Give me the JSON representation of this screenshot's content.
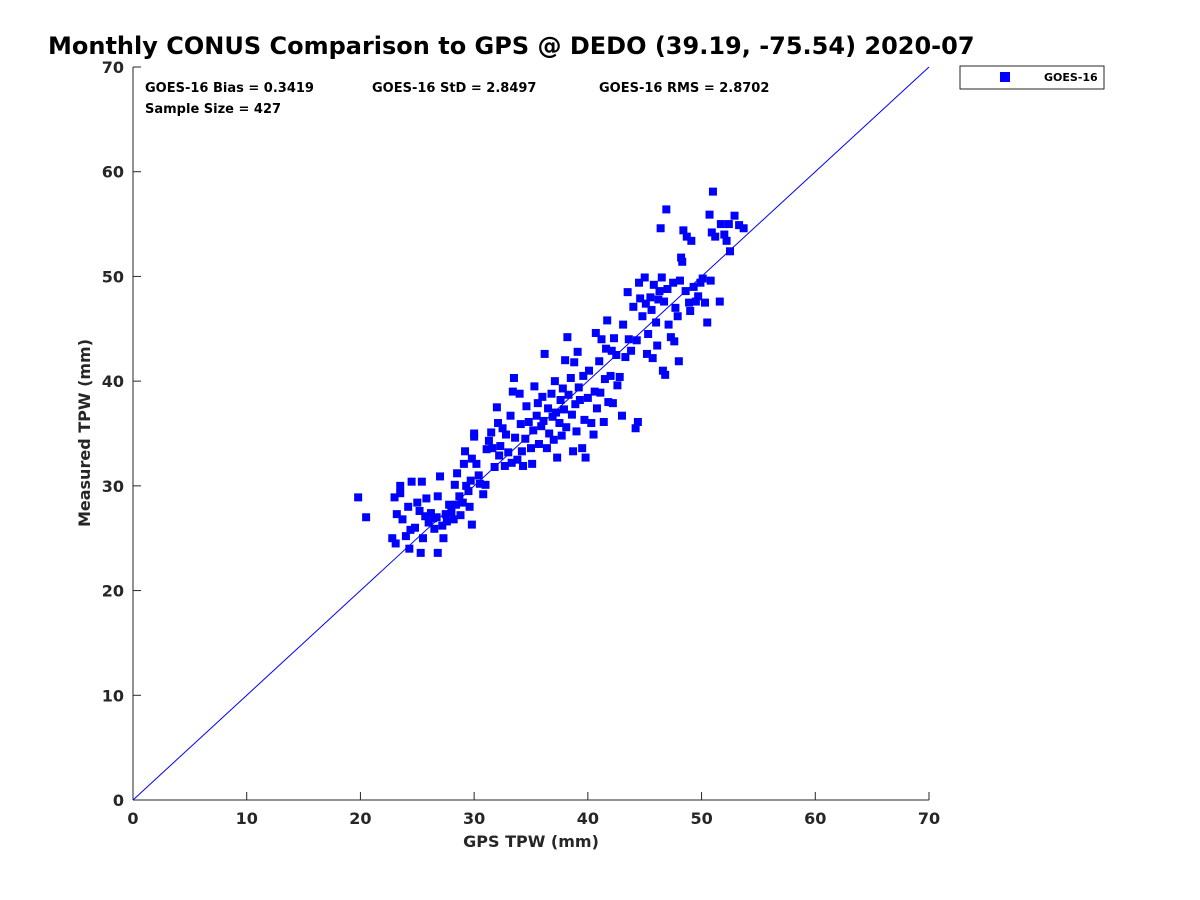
{
  "chart_data": {
    "type": "scatter",
    "title": "Monthly CONUS Comparison to GPS @ DEDO (39.19, -75.54) 2020-07",
    "xlabel": "GPS TPW (mm)",
    "ylabel": "Measured TPW (mm)",
    "xlim": [
      0,
      70
    ],
    "ylim": [
      0,
      70
    ],
    "xticks": [
      "0",
      "10",
      "20",
      "30",
      "40",
      "50",
      "60",
      "70"
    ],
    "yticks": [
      "0",
      "10",
      "20",
      "30",
      "40",
      "50",
      "60",
      "70"
    ],
    "grid": false,
    "legend_position": "outside-top-right",
    "annotations": {
      "bias": "GOES-16 Bias = 0.3419",
      "std": "GOES-16 StD = 2.8497",
      "rms": "GOES-16 RMS = 2.8702",
      "sample_size": "Sample Size = 427"
    },
    "reference_line": {
      "from": [
        0,
        0
      ],
      "to": [
        70,
        70
      ],
      "color": "#0000ff"
    },
    "series": [
      {
        "name": "GOES-16",
        "color": "#0000ff",
        "marker": "square",
        "points": [
          [
            19.8,
            28.9
          ],
          [
            20.5,
            27.0
          ],
          [
            22.8,
            25.0
          ],
          [
            23.1,
            24.5
          ],
          [
            23.2,
            27.3
          ],
          [
            23.0,
            28.9
          ],
          [
            23.5,
            29.3
          ],
          [
            23.5,
            30.0
          ],
          [
            23.7,
            26.8
          ],
          [
            24.0,
            25.2
          ],
          [
            24.2,
            28.0
          ],
          [
            24.3,
            24.0
          ],
          [
            24.4,
            25.8
          ],
          [
            24.5,
            30.4
          ],
          [
            24.8,
            26.0
          ],
          [
            25.0,
            28.4
          ],
          [
            25.2,
            27.6
          ],
          [
            25.3,
            23.6
          ],
          [
            25.4,
            30.4
          ],
          [
            25.5,
            25.0
          ],
          [
            25.7,
            27.1
          ],
          [
            25.8,
            28.8
          ],
          [
            26.0,
            26.5
          ],
          [
            26.2,
            27.4
          ],
          [
            26.4,
            26.9
          ],
          [
            26.5,
            25.9
          ],
          [
            26.7,
            27.0
          ],
          [
            26.8,
            23.6
          ],
          [
            26.8,
            29.0
          ],
          [
            27.0,
            30.9
          ],
          [
            27.2,
            26.2
          ],
          [
            27.3,
            25.0
          ],
          [
            27.5,
            27.3
          ],
          [
            27.6,
            26.6
          ],
          [
            27.8,
            28.2
          ],
          [
            28.0,
            27.5
          ],
          [
            28.2,
            26.8
          ],
          [
            28.3,
            30.1
          ],
          [
            28.4,
            28.2
          ],
          [
            28.5,
            31.2
          ],
          [
            28.7,
            29.0
          ],
          [
            28.8,
            27.2
          ],
          [
            29.0,
            28.4
          ],
          [
            29.1,
            32.1
          ],
          [
            29.2,
            33.3
          ],
          [
            29.3,
            30.0
          ],
          [
            29.5,
            29.5
          ],
          [
            29.6,
            28.0
          ],
          [
            29.7,
            30.5
          ],
          [
            29.8,
            32.6
          ],
          [
            30.0,
            35.0
          ],
          [
            30.0,
            34.7
          ],
          [
            29.8,
            26.3
          ],
          [
            30.2,
            32.1
          ],
          [
            30.4,
            31.0
          ],
          [
            30.5,
            30.2
          ],
          [
            30.8,
            29.2
          ],
          [
            31.0,
            30.1
          ],
          [
            31.1,
            33.5
          ],
          [
            31.3,
            34.3
          ],
          [
            31.5,
            35.1
          ],
          [
            31.6,
            33.6
          ],
          [
            31.8,
            31.8
          ],
          [
            32.0,
            37.5
          ],
          [
            32.1,
            36.0
          ],
          [
            32.2,
            32.9
          ],
          [
            32.3,
            33.8
          ],
          [
            32.5,
            35.5
          ],
          [
            32.7,
            31.9
          ],
          [
            32.8,
            34.9
          ],
          [
            33.0,
            33.2
          ],
          [
            33.2,
            36.7
          ],
          [
            33.3,
            32.2
          ],
          [
            33.4,
            39.0
          ],
          [
            33.5,
            40.3
          ],
          [
            33.6,
            34.6
          ],
          [
            33.8,
            32.5
          ],
          [
            34.0,
            38.8
          ],
          [
            34.1,
            35.9
          ],
          [
            34.2,
            33.3
          ],
          [
            34.3,
            31.9
          ],
          [
            34.5,
            34.5
          ],
          [
            34.6,
            37.6
          ],
          [
            34.8,
            36.1
          ],
          [
            35.0,
            33.6
          ],
          [
            35.1,
            32.1
          ],
          [
            35.2,
            35.3
          ],
          [
            35.3,
            39.5
          ],
          [
            35.5,
            36.7
          ],
          [
            35.6,
            37.9
          ],
          [
            35.7,
            34.0
          ],
          [
            35.9,
            35.7
          ],
          [
            36.0,
            38.5
          ],
          [
            36.1,
            36.2
          ],
          [
            36.2,
            42.6
          ],
          [
            36.4,
            33.6
          ],
          [
            36.5,
            37.4
          ],
          [
            36.6,
            35.0
          ],
          [
            36.8,
            38.8
          ],
          [
            36.9,
            36.6
          ],
          [
            37.0,
            34.4
          ],
          [
            37.1,
            40.0
          ],
          [
            37.2,
            37.0
          ],
          [
            37.3,
            32.7
          ],
          [
            37.5,
            36.0
          ],
          [
            37.6,
            38.2
          ],
          [
            37.7,
            34.8
          ],
          [
            37.8,
            39.3
          ],
          [
            37.9,
            37.3
          ],
          [
            38.0,
            42.0
          ],
          [
            38.1,
            35.6
          ],
          [
            38.2,
            44.2
          ],
          [
            38.3,
            38.7
          ],
          [
            38.5,
            40.3
          ],
          [
            38.6,
            36.8
          ],
          [
            38.7,
            33.3
          ],
          [
            38.8,
            41.8
          ],
          [
            38.9,
            37.8
          ],
          [
            39.0,
            35.2
          ],
          [
            39.1,
            42.8
          ],
          [
            39.2,
            39.4
          ],
          [
            39.3,
            38.2
          ],
          [
            39.5,
            33.6
          ],
          [
            39.6,
            40.5
          ],
          [
            39.7,
            36.3
          ],
          [
            39.8,
            32.7
          ],
          [
            40.0,
            38.4
          ],
          [
            40.1,
            41.0
          ],
          [
            40.3,
            36.0
          ],
          [
            40.5,
            34.9
          ],
          [
            40.6,
            39.0
          ],
          [
            40.7,
            44.6
          ],
          [
            40.8,
            37.4
          ],
          [
            41.0,
            41.9
          ],
          [
            41.1,
            38.9
          ],
          [
            41.2,
            44.0
          ],
          [
            41.4,
            36.1
          ],
          [
            41.5,
            40.2
          ],
          [
            41.6,
            43.1
          ],
          [
            41.7,
            45.8
          ],
          [
            41.8,
            38.0
          ],
          [
            42.0,
            40.5
          ],
          [
            42.1,
            42.9
          ],
          [
            42.2,
            37.9
          ],
          [
            42.3,
            44.1
          ],
          [
            42.5,
            42.5
          ],
          [
            42.6,
            39.6
          ],
          [
            42.8,
            40.4
          ],
          [
            43.0,
            36.7
          ],
          [
            43.1,
            45.4
          ],
          [
            43.3,
            42.3
          ],
          [
            43.5,
            48.5
          ],
          [
            43.6,
            44.0
          ],
          [
            43.8,
            42.9
          ],
          [
            44.0,
            47.1
          ],
          [
            44.2,
            35.5
          ],
          [
            44.3,
            43.9
          ],
          [
            44.4,
            36.1
          ],
          [
            44.5,
            49.4
          ],
          [
            44.6,
            47.9
          ],
          [
            44.8,
            46.2
          ],
          [
            45.0,
            49.9
          ],
          [
            45.1,
            47.4
          ],
          [
            45.2,
            42.6
          ],
          [
            45.3,
            44.5
          ],
          [
            45.5,
            48.0
          ],
          [
            45.6,
            46.8
          ],
          [
            45.7,
            42.2
          ],
          [
            45.8,
            49.2
          ],
          [
            46.0,
            45.6
          ],
          [
            46.1,
            43.4
          ],
          [
            46.2,
            47.8
          ],
          [
            46.3,
            48.6
          ],
          [
            46.4,
            54.6
          ],
          [
            46.5,
            49.9
          ],
          [
            46.6,
            41.0
          ],
          [
            46.7,
            47.6
          ],
          [
            46.8,
            40.6
          ],
          [
            46.9,
            56.4
          ],
          [
            47.0,
            48.8
          ],
          [
            47.1,
            45.4
          ],
          [
            47.3,
            44.2
          ],
          [
            47.5,
            49.4
          ],
          [
            47.6,
            43.8
          ],
          [
            47.7,
            47.0
          ],
          [
            47.9,
            46.2
          ],
          [
            48.0,
            41.9
          ],
          [
            48.1,
            49.6
          ],
          [
            48.2,
            51.8
          ],
          [
            48.3,
            51.4
          ],
          [
            48.4,
            54.4
          ],
          [
            48.6,
            48.6
          ],
          [
            48.7,
            53.8
          ],
          [
            48.9,
            47.5
          ],
          [
            49.0,
            46.7
          ],
          [
            49.1,
            53.4
          ],
          [
            49.3,
            49.0
          ],
          [
            49.5,
            47.6
          ],
          [
            49.7,
            48.1
          ],
          [
            49.9,
            49.4
          ],
          [
            50.1,
            49.8
          ],
          [
            50.3,
            47.5
          ],
          [
            50.5,
            45.6
          ],
          [
            50.7,
            55.9
          ],
          [
            50.8,
            49.6
          ],
          [
            50.9,
            54.2
          ],
          [
            51.0,
            58.1
          ],
          [
            51.2,
            53.8
          ],
          [
            51.6,
            47.6
          ],
          [
            51.7,
            55.0
          ],
          [
            52.0,
            54.0
          ],
          [
            52.2,
            53.4
          ],
          [
            52.4,
            55.0
          ],
          [
            52.5,
            52.4
          ],
          [
            52.9,
            55.8
          ],
          [
            53.3,
            54.9
          ],
          [
            53.7,
            54.6
          ]
        ]
      }
    ]
  }
}
